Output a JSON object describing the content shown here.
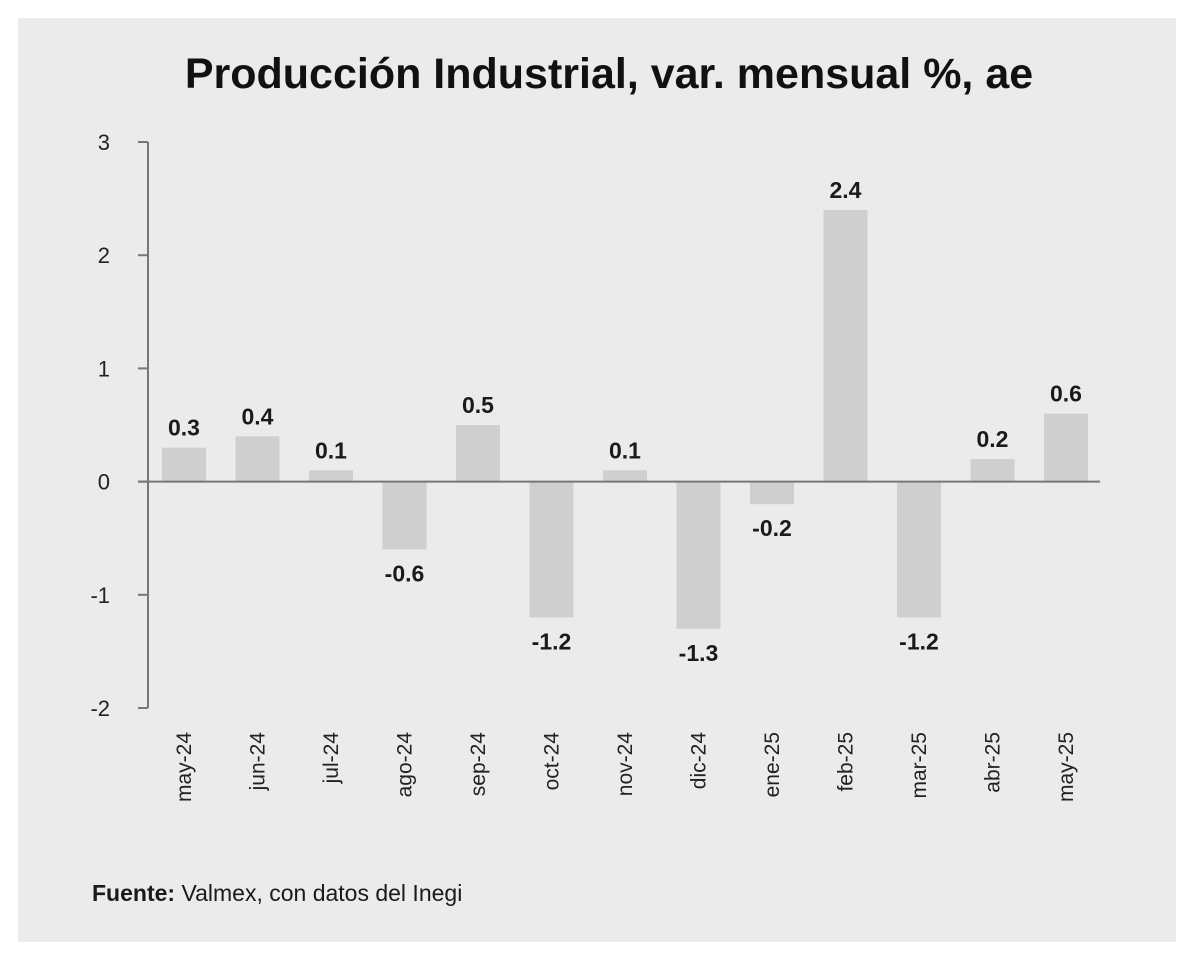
{
  "chart_data": {
    "type": "bar",
    "title": "Producción Industrial, var. mensual %, ae",
    "categories": [
      "may-24",
      "jun-24",
      "jul-24",
      "ago-24",
      "sep-24",
      "oct-24",
      "nov-24",
      "dic-24",
      "ene-25",
      "feb-25",
      "mar-25",
      "abr-25",
      "may-25"
    ],
    "values": [
      0.3,
      0.4,
      0.1,
      -0.6,
      0.5,
      -1.2,
      0.1,
      -1.3,
      -0.2,
      2.4,
      -1.2,
      0.2,
      0.6
    ],
    "value_labels": [
      "0.3",
      "0.4",
      "0.1",
      "-0.6",
      "0.5",
      "-1.2",
      "0.1",
      "-1.3",
      "-0.2",
      "2.4",
      "-1.2",
      "0.2",
      "0.6"
    ],
    "ylim": [
      -2,
      3
    ],
    "yticks": [
      3,
      2,
      1,
      0,
      -1,
      -2
    ],
    "ytick_labels": [
      "3",
      "2",
      "1",
      "0",
      "-1",
      "-2"
    ],
    "xlabel": "",
    "ylabel": "",
    "bar_color": "#cfcfcf",
    "axis_color": "#777777"
  },
  "source": {
    "label": "Fuente:",
    "text": " Valmex, con datos del Inegi"
  }
}
